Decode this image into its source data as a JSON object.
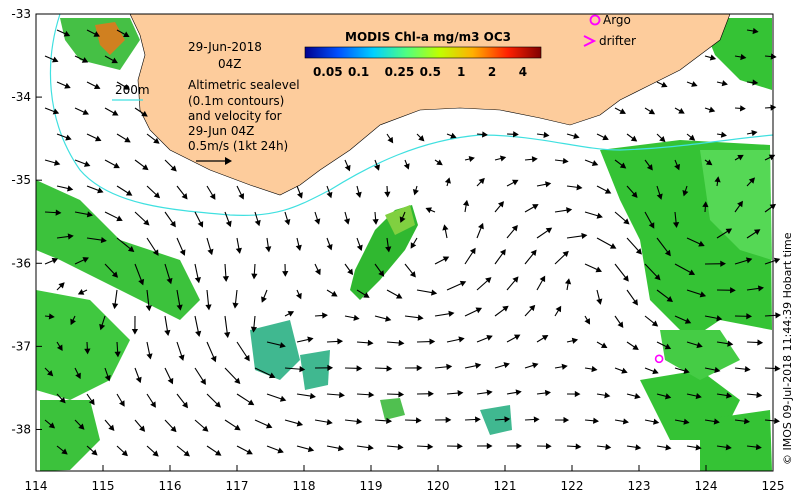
{
  "header": {
    "date": "29-Jun-2018",
    "time": "04Z"
  },
  "annotation": {
    "lines": [
      "Altimetric sealevel",
      "(0.1m contours)",
      "and velocity for",
      "29-Jun 04Z",
      "0.5m/s (1kt 24h)"
    ],
    "depth_contour_label": "200m"
  },
  "colorbar": {
    "title": "MODIS Chl-a mg/m3 OC3",
    "ticks": [
      "0.05",
      "0.1",
      "0.25",
      "0.5",
      "1",
      "2",
      "4"
    ],
    "tick_values": [
      0.05,
      0.1,
      0.25,
      0.5,
      1,
      2,
      4
    ],
    "range": [
      0.03,
      6
    ],
    "scale": "log",
    "colors": [
      "#00008f",
      "#0050ff",
      "#00d0ff",
      "#50ff80",
      "#c0ff00",
      "#ffb000",
      "#ff2000",
      "#800000"
    ]
  },
  "legend": {
    "argo_label": "Argo",
    "drifter_label": "drifter",
    "argo_color": "#ff00ff",
    "drifter_color": "#ff00ff"
  },
  "credit": "© IMOS 09-Jul-2018 11:44:39 Hobart time",
  "chart_data": {
    "type": "map",
    "x_ticks": [
      "114",
      "115",
      "116",
      "117",
      "118",
      "119",
      "120",
      "121",
      "122",
      "123",
      "124",
      "125"
    ],
    "y_ticks": [
      "-33",
      "-34",
      "-35",
      "-36",
      "-37",
      "-38"
    ],
    "x_values": [
      114,
      115,
      116,
      117,
      118,
      119,
      120,
      121,
      122,
      123,
      124,
      125
    ],
    "y_values": [
      -33,
      -34,
      -35,
      -36,
      -37,
      -38
    ],
    "xlim": [
      114,
      125
    ],
    "ylim": [
      -38.5,
      -33
    ],
    "argo_floats": [
      {
        "lon": 123.3,
        "lat": -37.15
      }
    ],
    "land_color": "#fdcc9c",
    "contour_color": "#40e0e0"
  }
}
